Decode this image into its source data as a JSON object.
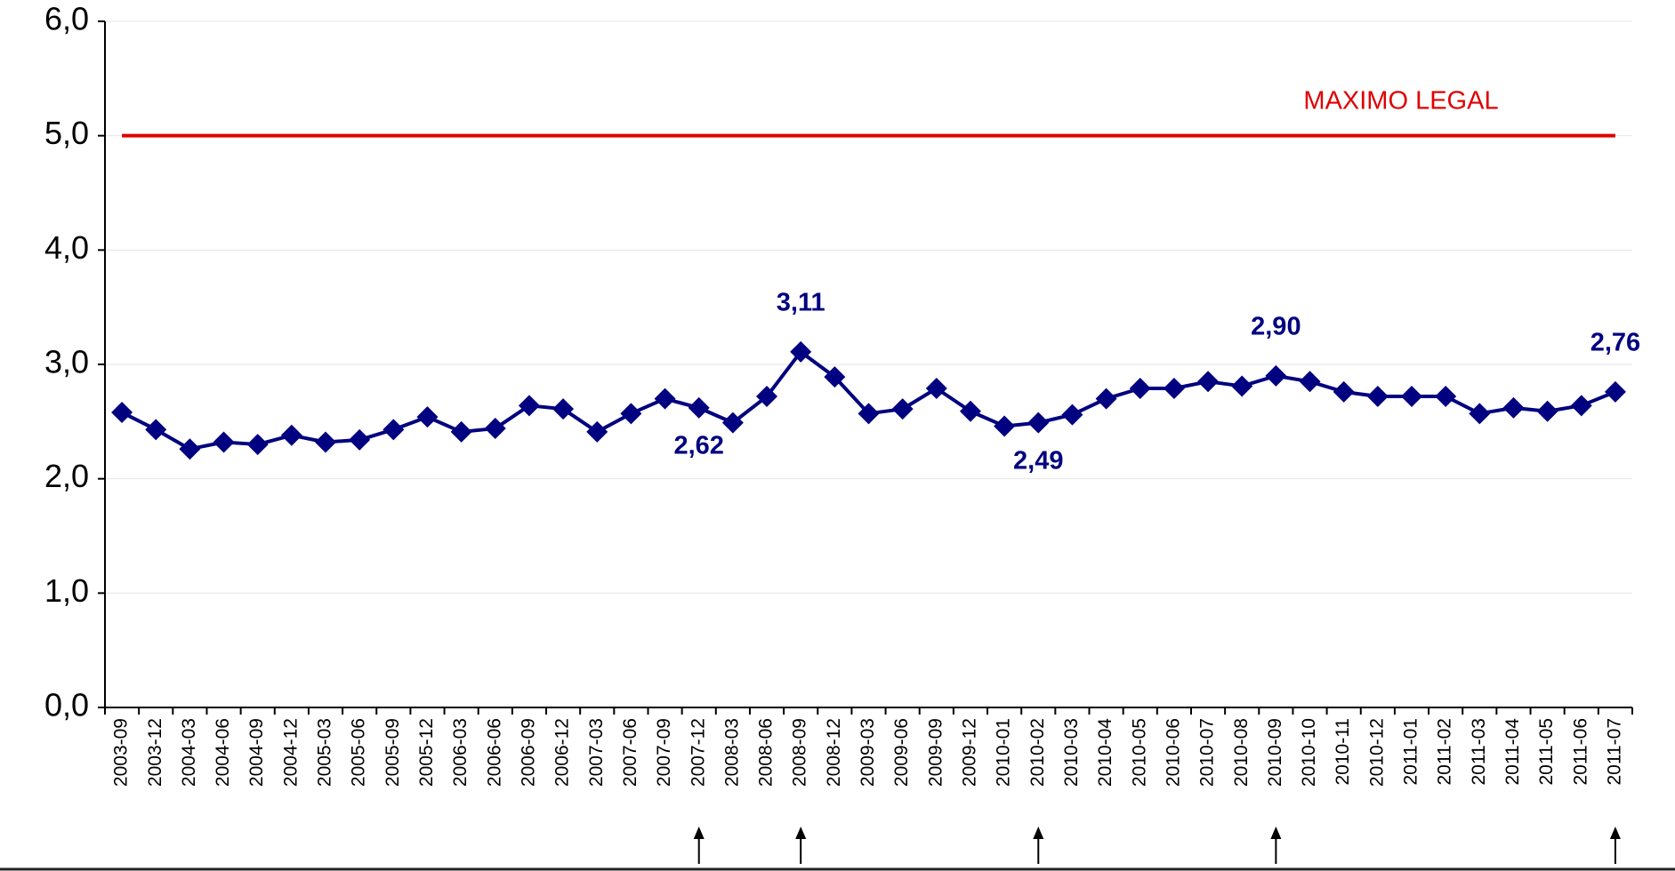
{
  "chart_data": {
    "type": "line",
    "categories": [
      "2003-09",
      "2003-12",
      "2004-03",
      "2004-06",
      "2004-09",
      "2004-12",
      "2005-03",
      "2005-06",
      "2005-09",
      "2005-12",
      "2006-03",
      "2006-06",
      "2006-09",
      "2006-12",
      "2007-03",
      "2007-06",
      "2007-09",
      "2007-12",
      "2008-03",
      "2008-06",
      "2008-09",
      "2008-12",
      "2009-03",
      "2009-06",
      "2009-09",
      "2009-12",
      "2010-01",
      "2010-02",
      "2010-03",
      "2010-04",
      "2010-05",
      "2010-06",
      "2010-07",
      "2010-08",
      "2010-09",
      "2010-10",
      "2010-11",
      "2010-12",
      "2011-01",
      "2011-02",
      "2011-03",
      "2011-04",
      "2011-05",
      "2011-06",
      "2011-07"
    ],
    "values": [
      2.58,
      2.43,
      2.26,
      2.32,
      2.3,
      2.38,
      2.32,
      2.34,
      2.43,
      2.54,
      2.41,
      2.44,
      2.64,
      2.61,
      2.41,
      2.57,
      2.7,
      2.62,
      2.49,
      2.72,
      3.11,
      2.89,
      2.57,
      2.61,
      2.79,
      2.59,
      2.46,
      2.49,
      2.56,
      2.7,
      2.79,
      2.79,
      2.85,
      2.81,
      2.9,
      2.85,
      2.76,
      2.72,
      2.72,
      2.72,
      2.57,
      2.62,
      2.59,
      2.64,
      2.76
    ],
    "value_labels": [
      null,
      null,
      null,
      null,
      null,
      null,
      null,
      null,
      null,
      null,
      null,
      null,
      null,
      null,
      null,
      null,
      null,
      "2,62",
      null,
      null,
      "3,11",
      null,
      null,
      null,
      null,
      null,
      null,
      "2,49",
      null,
      null,
      null,
      null,
      null,
      null,
      "2,90",
      null,
      null,
      null,
      null,
      null,
      null,
      null,
      null,
      null,
      "2,76"
    ],
    "value_label_positions": [
      null,
      null,
      null,
      null,
      null,
      null,
      null,
      null,
      null,
      null,
      null,
      null,
      null,
      null,
      null,
      null,
      null,
      "below",
      null,
      null,
      "above",
      null,
      null,
      null,
      null,
      null,
      null,
      "below",
      null,
      null,
      null,
      null,
      null,
      null,
      "above",
      null,
      null,
      null,
      null,
      null,
      null,
      null,
      null,
      null,
      "above"
    ],
    "color": "#000080",
    "ylim": [
      0,
      6
    ],
    "yticks": [
      {
        "value": 0,
        "label": "0,0"
      },
      {
        "value": 1,
        "label": "1,0"
      },
      {
        "value": 2,
        "label": "2,0"
      },
      {
        "value": 3,
        "label": "3,0"
      },
      {
        "value": 4,
        "label": "4,0"
      },
      {
        "value": 5,
        "label": "5,0"
      },
      {
        "value": 6,
        "label": "6,0"
      }
    ],
    "grid": true,
    "reference_line": {
      "value": 5,
      "label": "MAXIMO LEGAL",
      "color": "#e00000"
    }
  }
}
